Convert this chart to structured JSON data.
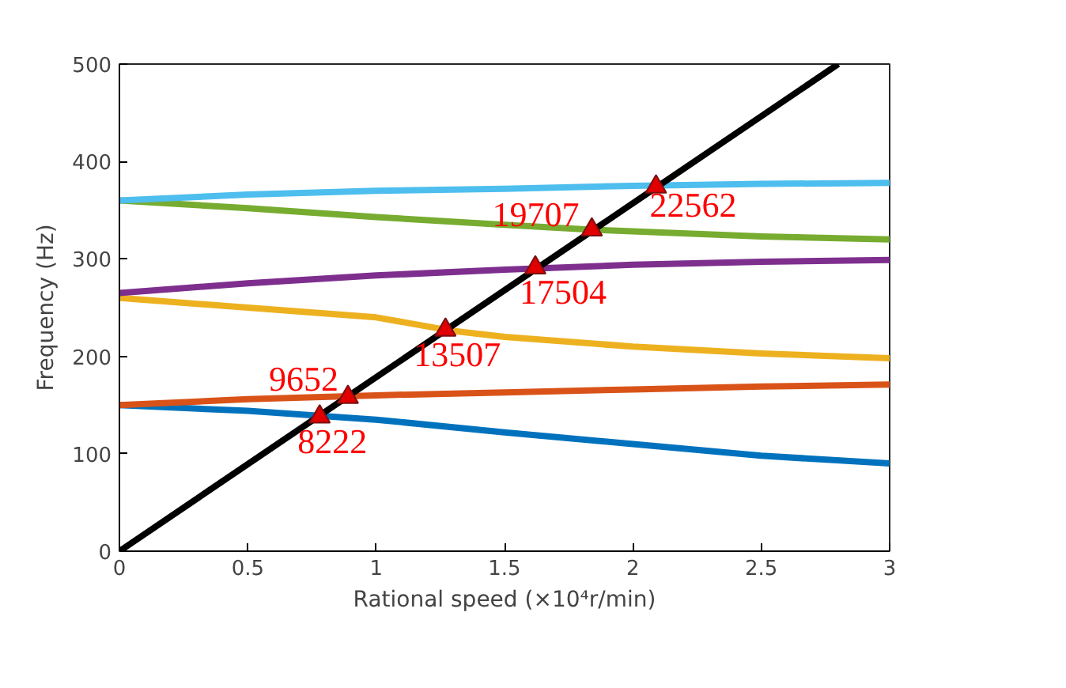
{
  "chart_data": {
    "type": "line",
    "xlabel": "Rational speed (×10⁴r/min)",
    "ylabel": "Frequency (Hz)",
    "xlim": [
      0,
      3
    ],
    "xticks": [
      0,
      0.5,
      1,
      1.5,
      2,
      2.5,
      3
    ],
    "ylim": [
      0,
      500
    ],
    "yticks": [
      0,
      100,
      200,
      300,
      400,
      500
    ],
    "grid": false,
    "series": [
      {
        "color": "#0072bd",
        "x": [
          0,
          0.5,
          1,
          1.5,
          2,
          2.5,
          3
        ],
        "values": [
          150,
          144,
          135,
          122,
          110,
          98,
          90
        ]
      },
      {
        "color": "#d95319",
        "x": [
          0,
          0.5,
          1,
          1.5,
          2,
          2.5,
          3
        ],
        "values": [
          150,
          156,
          160,
          163,
          166,
          169,
          171
        ]
      },
      {
        "color": "#edb120",
        "x": [
          0,
          0.5,
          1,
          1.3,
          1.5,
          2,
          2.5,
          3
        ],
        "values": [
          260,
          250,
          240,
          226,
          220,
          210,
          203,
          198
        ]
      },
      {
        "color": "#7e2f8e",
        "x": [
          0,
          0.5,
          1,
          1.5,
          2,
          2.5,
          3
        ],
        "values": [
          265,
          275,
          283,
          289,
          294,
          297,
          299
        ]
      },
      {
        "color": "#77ac30",
        "x": [
          0,
          0.5,
          1,
          1.5,
          1.84,
          2.5,
          3
        ],
        "values": [
          360,
          352,
          343,
          335,
          330,
          323,
          320
        ]
      },
      {
        "color": "#4dbeee",
        "x": [
          0,
          0.5,
          1,
          1.5,
          2,
          2.5,
          3
        ],
        "values": [
          360,
          366,
          370,
          372,
          375,
          377,
          378
        ]
      },
      {
        "color": "#000000",
        "x": [
          0,
          2.8
        ],
        "values": [
          0,
          500
        ]
      },
      {
        "type": "scatter",
        "marker": "triangle",
        "color": "#e00000",
        "x": [
          0.78,
          0.89,
          1.27,
          1.62,
          1.84,
          2.09
        ],
        "values": [
          138,
          158,
          227,
          291,
          330,
          374
        ]
      }
    ],
    "annotations": [
      {
        "text": "8222",
        "x": 0.78,
        "y": 138
      },
      {
        "text": "9652",
        "x": 0.89,
        "y": 158
      },
      {
        "text": "13507",
        "x": 1.27,
        "y": 227
      },
      {
        "text": "17504",
        "x": 1.62,
        "y": 291
      },
      {
        "text": "19707",
        "x": 1.84,
        "y": 330
      },
      {
        "text": "22562",
        "x": 2.09,
        "y": 374
      }
    ]
  }
}
